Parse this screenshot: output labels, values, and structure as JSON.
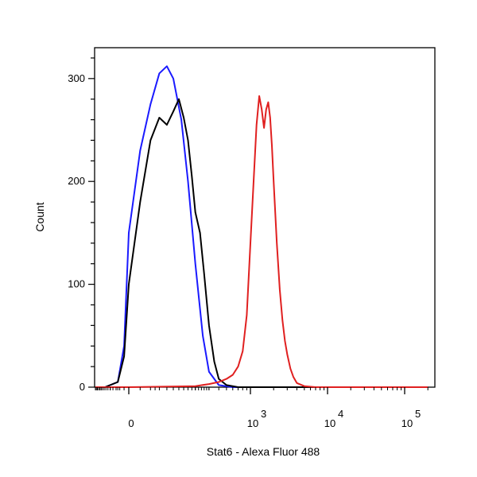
{
  "chart_data": {
    "type": "line",
    "title": "",
    "xlabel": "Stat6 - Alexa Fluor 488",
    "ylabel": "Count",
    "x_scale": "biexponential",
    "xlim": [
      -300,
      200000
    ],
    "ylim": [
      0,
      330
    ],
    "grid": false,
    "legend": "none",
    "y_ticks": [
      {
        "value": 0,
        "label": "0"
      },
      {
        "value": 100,
        "label": "100"
      },
      {
        "value": 200,
        "label": "200"
      },
      {
        "value": 300,
        "label": "300"
      }
    ],
    "x_ticks": [
      {
        "value": 0,
        "base": "0",
        "exp": ""
      },
      {
        "value": 1000,
        "base": "10",
        "exp": "3"
      },
      {
        "value": 10000,
        "base": "10",
        "exp": "4"
      },
      {
        "value": 100000,
        "base": "10",
        "exp": "5"
      }
    ],
    "series": [
      {
        "color": "#1a1aff",
        "x": [
          -300,
          -150,
          -50,
          -20,
          0,
          20,
          40,
          60,
          80,
          100,
          130,
          160,
          200,
          250,
          300,
          400,
          600,
          1000,
          10000,
          200000
        ],
        "y": [
          0,
          0,
          5,
          40,
          150,
          230,
          275,
          305,
          312,
          300,
          260,
          200,
          120,
          50,
          15,
          2,
          0,
          0,
          0,
          0
        ]
      },
      {
        "color": "#000000",
        "x": [
          -300,
          -150,
          -50,
          -20,
          0,
          20,
          40,
          60,
          80,
          100,
          120,
          140,
          160,
          180,
          200,
          230,
          260,
          300,
          350,
          400,
          500,
          700,
          1000,
          10000,
          200000
        ],
        "y": [
          0,
          0,
          5,
          30,
          100,
          180,
          240,
          262,
          255,
          268,
          280,
          262,
          240,
          205,
          170,
          150,
          110,
          60,
          25,
          8,
          2,
          0,
          0,
          0,
          0
        ]
      },
      {
        "color": "#e02020",
        "x": [
          -300,
          0,
          200,
          300,
          400,
          500,
          600,
          700,
          800,
          900,
          1000,
          1100,
          1200,
          1300,
          1400,
          1500,
          1600,
          1700,
          1800,
          1900,
          2000,
          2200,
          2400,
          2600,
          2800,
          3000,
          3300,
          3600,
          4000,
          5000,
          7000,
          10000,
          200000
        ],
        "y": [
          0,
          0,
          1,
          3,
          5,
          8,
          12,
          20,
          35,
          70,
          140,
          200,
          255,
          283,
          270,
          252,
          270,
          277,
          262,
          235,
          200,
          140,
          95,
          65,
          45,
          32,
          18,
          10,
          4,
          1,
          0,
          0,
          0
        ]
      }
    ]
  }
}
